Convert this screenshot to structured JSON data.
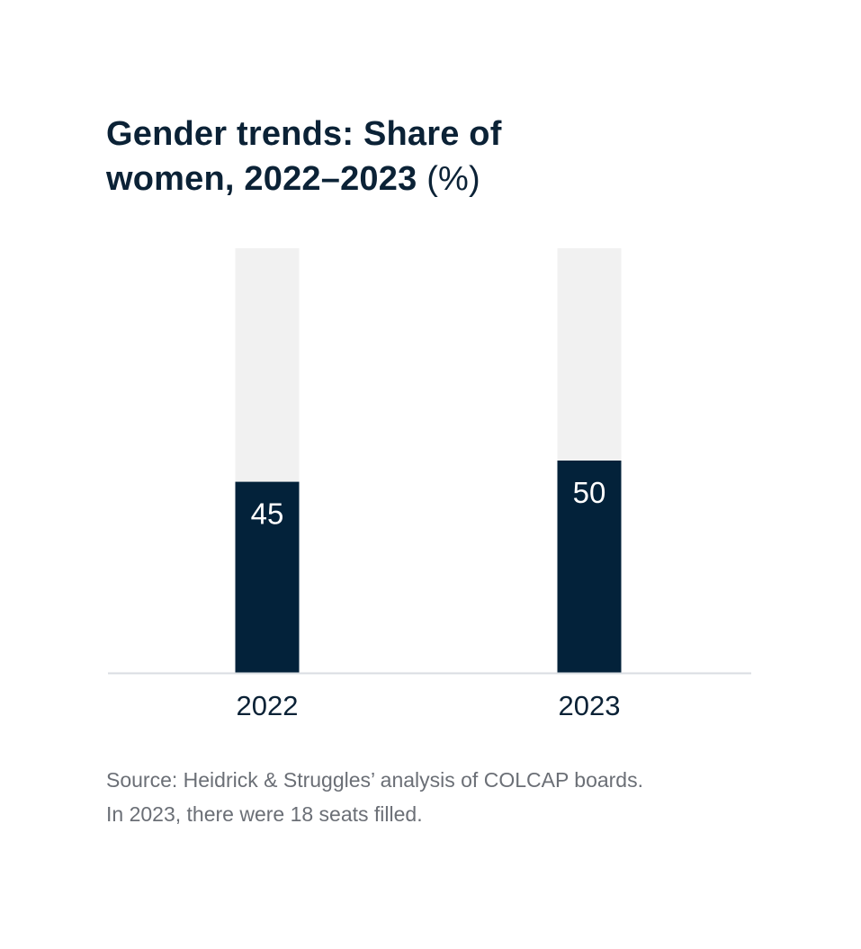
{
  "title": {
    "line1": "Gender trends: Share of",
    "line2": "women, 2022–2023",
    "unit": "(%)"
  },
  "chart_data": {
    "type": "bar",
    "title": "Gender trends: Share of women, 2022–2023 (%)",
    "categories": [
      "2022",
      "2023"
    ],
    "values": [
      45,
      50
    ],
    "data_labels": [
      "45",
      "50"
    ],
    "ylim": [
      0,
      100
    ],
    "grid": false,
    "legend": "none",
    "colors": {
      "bar": "#03223a",
      "background_bar": "#f1f1f1",
      "baseline": "#d9dde2",
      "label_on_bar": "#ffffff",
      "category_label": "#0b2236"
    }
  },
  "source": {
    "line1": "Source: Heidrick & Struggles’ analysis of COLCAP boards.",
    "line2": "In 2023, there were 18 seats filled."
  }
}
